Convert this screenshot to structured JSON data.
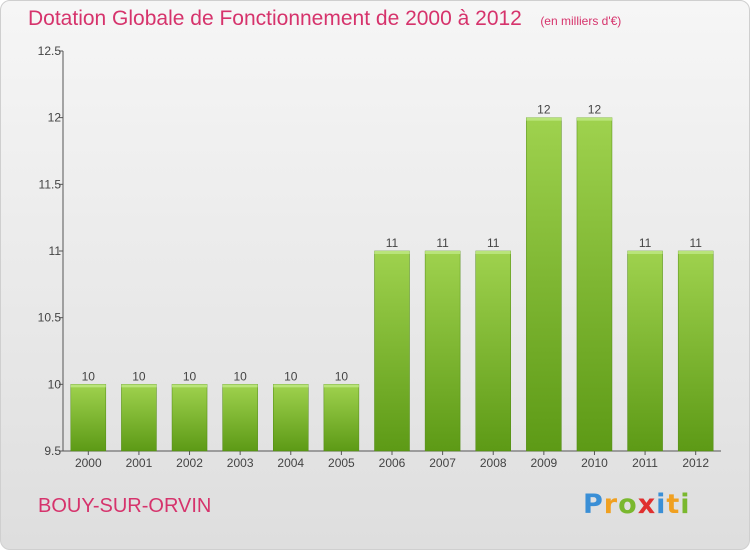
{
  "title": "Dotation Globale de Fonctionnement de 2000 à 2012",
  "unit_note": "(en milliers d'€)",
  "commune": "BOUY-SUR-ORVIN",
  "logo": {
    "letters": [
      "P",
      "r",
      "o",
      "x",
      "i",
      "t",
      "i"
    ],
    "colors": [
      "#3a8fd6",
      "#f0a020",
      "#7ab82e",
      "#e0302f",
      "#3a8fd6",
      "#f0a020",
      "#7ab82e"
    ]
  },
  "chart_data": {
    "type": "bar",
    "categories": [
      "2000",
      "2001",
      "2002",
      "2003",
      "2004",
      "2005",
      "2006",
      "2007",
      "2008",
      "2009",
      "2010",
      "2011",
      "2012"
    ],
    "values": [
      10,
      10,
      10,
      10,
      10,
      10,
      11,
      11,
      11,
      12,
      12,
      11,
      11
    ],
    "data_labels": [
      "10",
      "10",
      "10",
      "10",
      "10",
      "10",
      "11",
      "11",
      "11",
      "12",
      "12",
      "11",
      "11"
    ],
    "ylim": [
      9.5,
      12.5
    ],
    "yticks": [
      9.5,
      10,
      10.5,
      11,
      11.5,
      12,
      12.5
    ],
    "ytick_labels": [
      "9.5",
      "10",
      "10.5",
      "11",
      "11.5",
      "12",
      "12.5"
    ],
    "bar_color": "#7ab82e",
    "grid": false,
    "legend": "none"
  }
}
